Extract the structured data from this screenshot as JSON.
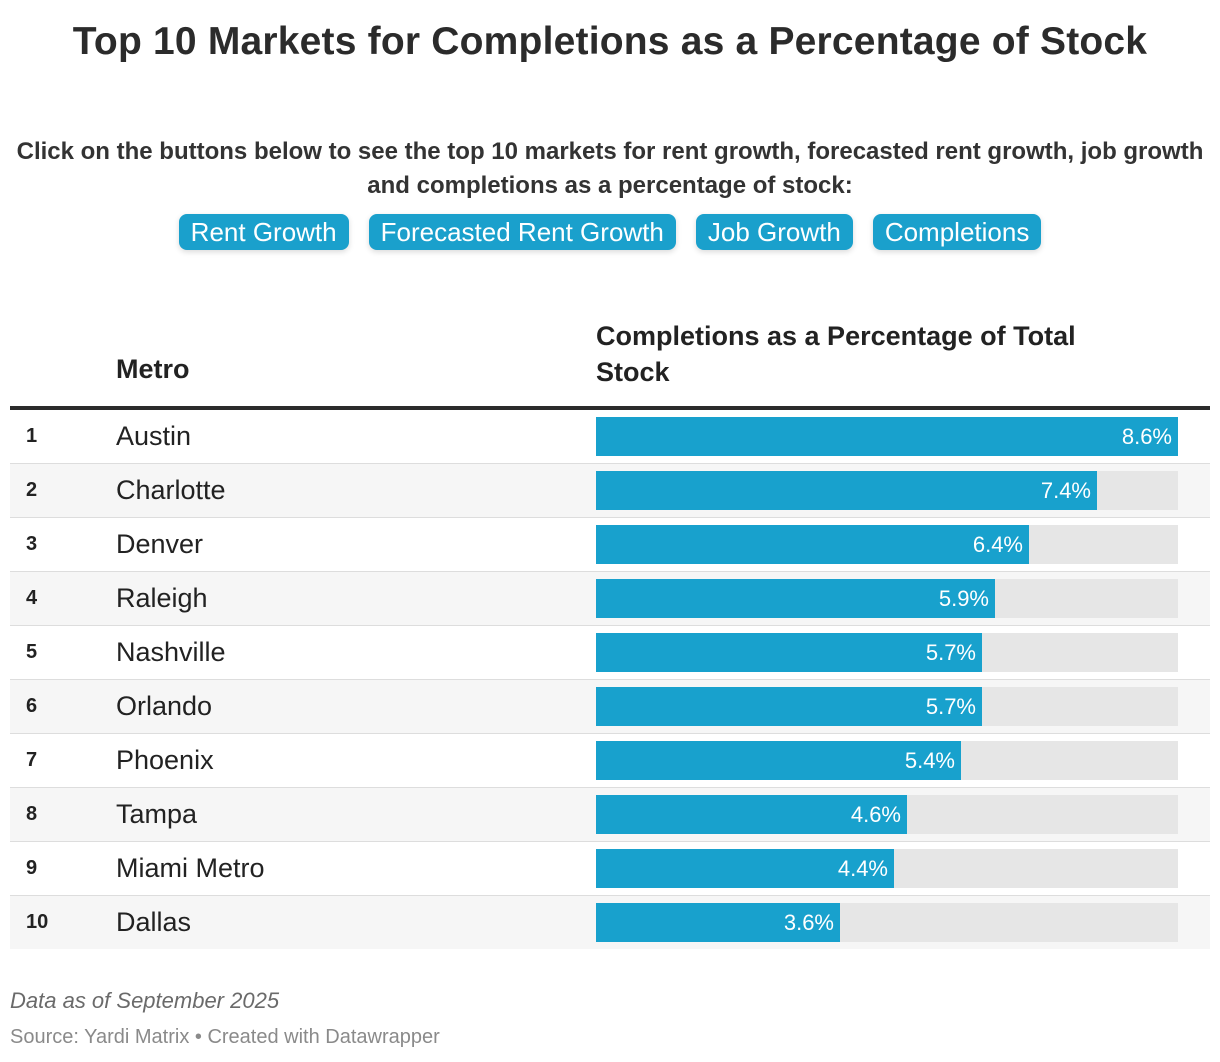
{
  "title": "Top 10 Markets for Completions as a Percentage of Stock",
  "description": "Click on the buttons below to see the top 10 markets for rent growth, forecasted rent growth, job growth and completions as a percentage of stock:",
  "buttons": [
    "Rent Growth",
    "Forecasted Rent Growth",
    "Job Growth",
    "Completions"
  ],
  "table_headers": {
    "metro": "Metro",
    "value": "Completions as a Percentage of Total Stock"
  },
  "chart_data": {
    "type": "bar",
    "orientation": "horizontal",
    "title": "Top 10 Markets for Completions as a Percentage of Stock",
    "xlabel": "Completions as a Percentage of Total Stock",
    "ylabel": "Metro",
    "xlim": [
      0,
      8.6
    ],
    "ranks": [
      "1",
      "2",
      "3",
      "4",
      "5",
      "6",
      "7",
      "8",
      "9",
      "10"
    ],
    "categories": [
      "Austin",
      "Charlotte",
      "Denver",
      "Raleigh",
      "Nashville",
      "Orlando",
      "Phoenix",
      "Tampa",
      "Miami Metro",
      "Dallas"
    ],
    "values": [
      8.6,
      7.4,
      6.4,
      5.9,
      5.7,
      5.7,
      5.4,
      4.6,
      4.4,
      3.6
    ],
    "labels": [
      "8.6%",
      "7.4%",
      "6.4%",
      "5.9%",
      "5.7%",
      "5.7%",
      "5.4%",
      "4.6%",
      "4.4%",
      "3.6%"
    ],
    "bar_color": "#18a1cd",
    "track_color": "#e6e6e6"
  },
  "footer": {
    "note": "Data as of September 2025",
    "source": "Source: Yardi Matrix • Created with Datawrapper"
  }
}
